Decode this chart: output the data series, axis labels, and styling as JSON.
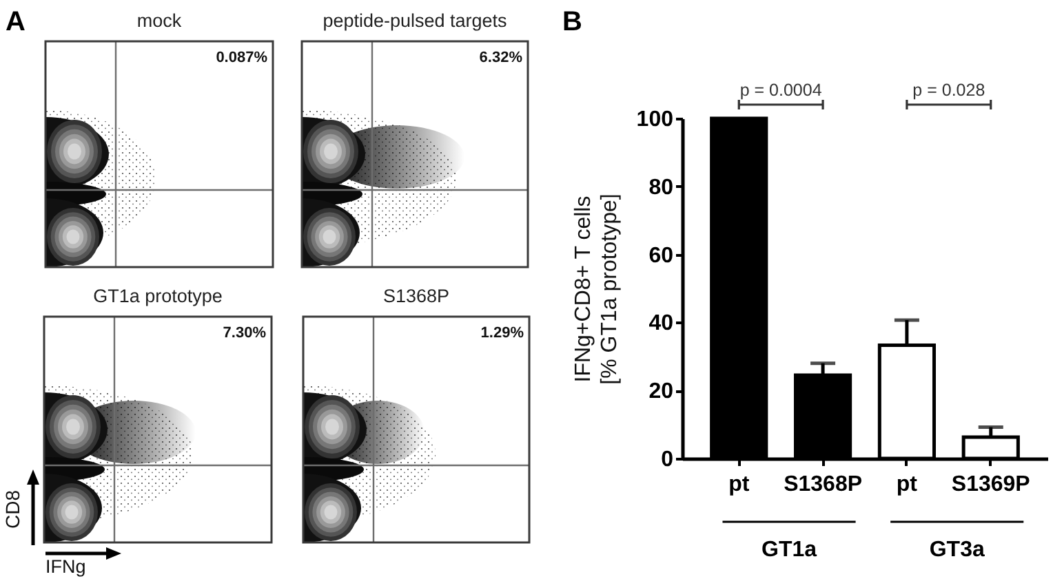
{
  "chart_data": [
    {
      "type": "other",
      "title": "mock",
      "annotations": [
        "0.087%",
        "A"
      ]
    },
    {
      "type": "other",
      "title": "peptide-pulsed targets",
      "annotations": [
        "6.32%"
      ]
    },
    {
      "type": "other",
      "title": "GT1a prototype",
      "xlabel": "IFNg",
      "ylabel": "CD8",
      "annotations": [
        "7.30%"
      ]
    },
    {
      "type": "other",
      "title": "S1368P",
      "annotations": [
        "1.29%"
      ]
    },
    {
      "type": "bar",
      "categories": [
        "pt",
        "S1368P",
        "pt",
        "S1369P"
      ],
      "values": [
        100,
        24.5,
        33.3,
        6.3
      ],
      "colors": [
        "#000000",
        "#000000",
        "#ffffff",
        "#ffffff"
      ],
      "errors": [
        null,
        [
          24.5,
          28
        ],
        [
          33.3,
          40.7
        ],
        [
          6.3,
          9.2
        ]
      ],
      "ylim": [
        0,
        100
      ],
      "yticks": [
        0,
        20,
        40,
        60,
        80,
        100
      ],
      "ylabel": "IFNg+CD8+ T cells\n[% GT1a prototype]",
      "annotations": [
        "p = 0.0004",
        "p = 0.028",
        "GT1a",
        "GT3a",
        "B"
      ]
    }
  ]
}
